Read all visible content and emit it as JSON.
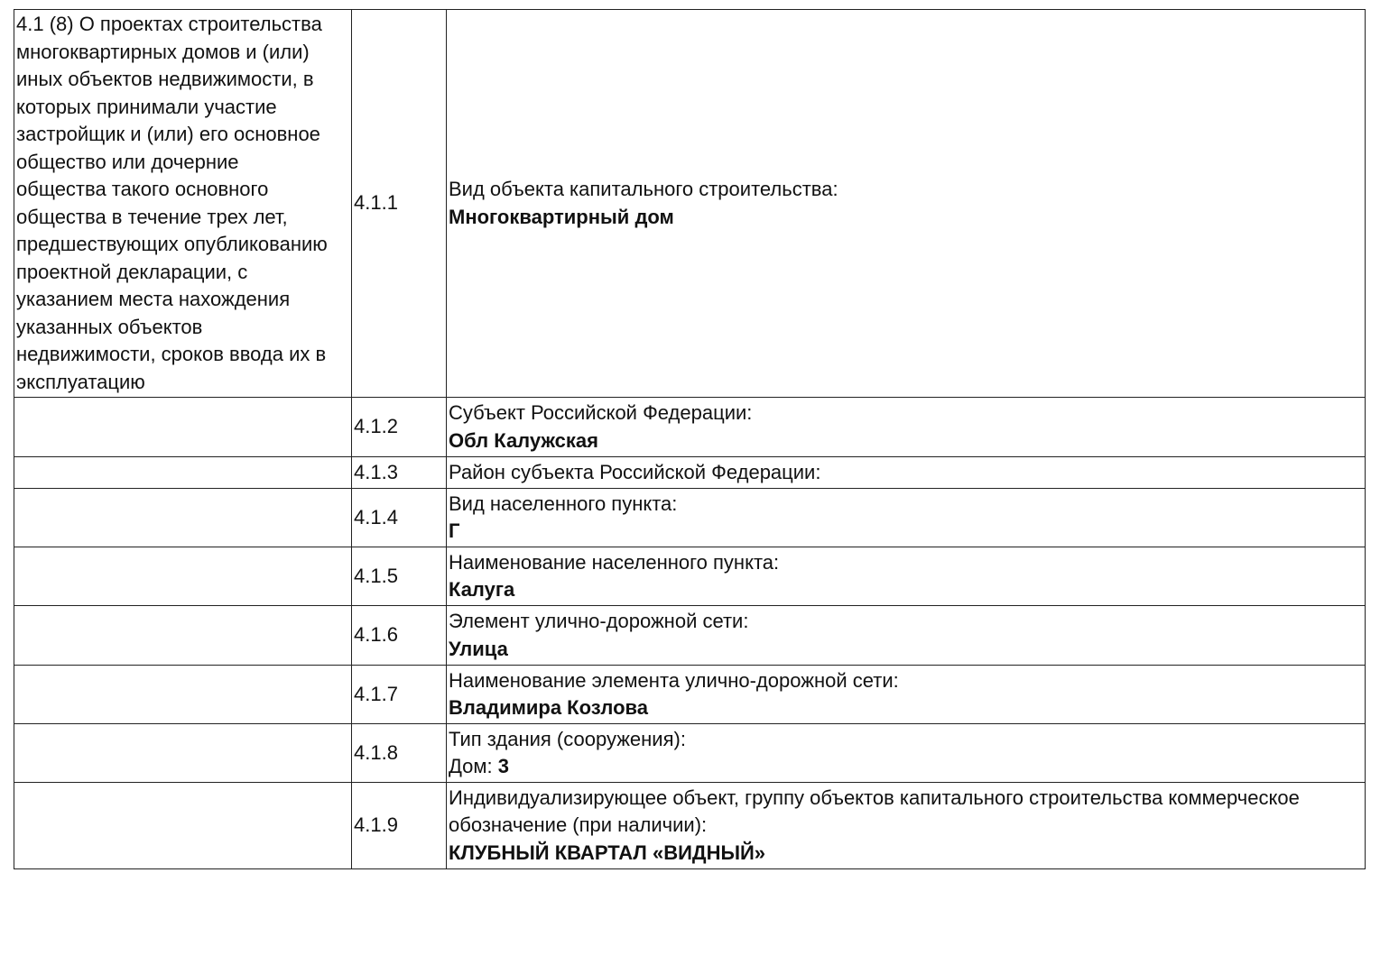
{
  "section": {
    "title_lines": [
      "4.1 (8) О проектах строительства",
      "многоквартирных домов и (или)",
      "иных объектов недвижимости, в",
      "которых принимали участие",
      "застройщик и (или) его основное",
      "общество или дочерние",
      "общества такого основного",
      "общества в течение трех лет,",
      "предшествующих опубликованию",
      "проектной декларации, с",
      "указанием места нахождения",
      "указанных объектов",
      "недвижимости, сроков ввода их в",
      "эксплуатацию"
    ]
  },
  "rows": [
    {
      "num": "4.1.1",
      "label": "Вид объекта капитального строительства:",
      "value": "Многоквартирный дом"
    },
    {
      "num": "4.1.2",
      "label": "Субъект Российской Федерации:",
      "value": "Обл Калужская"
    },
    {
      "num": "4.1.3",
      "label": "Район субъекта Российской Федерации:",
      "value": ""
    },
    {
      "num": "4.1.4",
      "label": "Вид населенного пункта:",
      "value": "Г"
    },
    {
      "num": "4.1.5",
      "label": "Наименование населенного пункта:",
      "value": "Калуга"
    },
    {
      "num": "4.1.6",
      "label": "Элемент улично-дорожной сети:",
      "value": "Улица"
    },
    {
      "num": "4.1.7",
      "label": "Наименование элемента улично-дорожной сети:",
      "value": "Владимира Козлова"
    },
    {
      "num": "4.1.8",
      "label": "Тип здания (сооружения):",
      "value_prefix": "Дом: ",
      "value": "3"
    },
    {
      "num": "4.1.9",
      "label_lines": [
        "Индивидуализирующее объект, группу объектов капитального строительства коммерческое",
        "обозначение (при наличии):"
      ],
      "value": "КЛУБНЫЙ КВАРТАЛ «ВИДНЫЙ»"
    }
  ]
}
